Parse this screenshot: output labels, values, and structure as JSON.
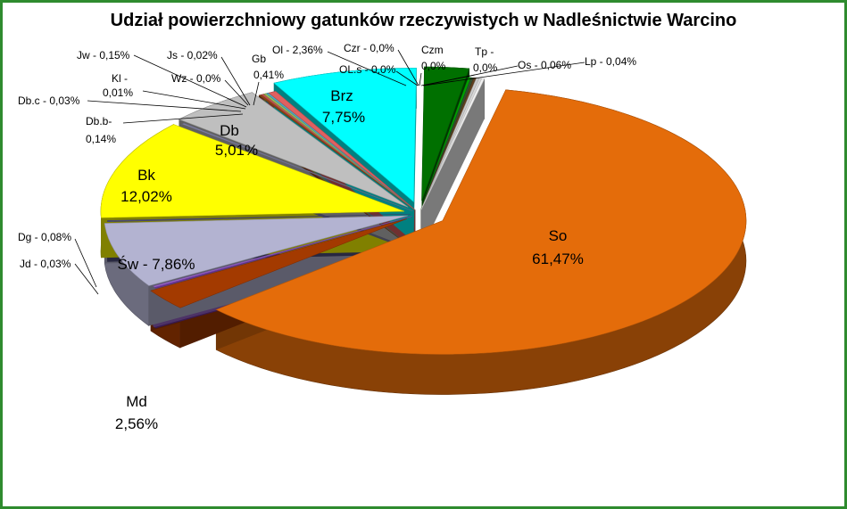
{
  "chart_data": {
    "type": "pie",
    "title": "Udział powierzchniowy gatunków rzeczywistych w Nadleśnictwie Warcino",
    "slices": [
      {
        "name": "So",
        "value": 61.47,
        "label": "So",
        "value_label": "61,47%",
        "color": "#e46c0a"
      },
      {
        "name": "Md",
        "value": 2.56,
        "label": "Md",
        "value_label": "2,56%",
        "color": "#a33a00"
      },
      {
        "name": "Jd",
        "value": 0.03,
        "label": "Jd - 0,03%",
        "color": "#7030a0"
      },
      {
        "name": "Dg",
        "value": 0.08,
        "label": "Dg - 0,08%",
        "color": "#9966cc"
      },
      {
        "name": "Św",
        "value": 7.86,
        "label": "Św - 7,86%",
        "color": "#b3b3d1"
      },
      {
        "name": "Db.c",
        "value": 0.03,
        "label": "Db.c - 0,03%",
        "color": "#4f4f7f"
      },
      {
        "name": "Bk",
        "value": 12.02,
        "label": "Bk",
        "value_label": "12,02%",
        "color": "#ffff00"
      },
      {
        "name": "Db.b",
        "value": 0.14,
        "label": "Db.b-",
        "value_label": "0,14%",
        "color": "#8080a0"
      },
      {
        "name": "Db",
        "value": 5.01,
        "label": "Db",
        "value_label": "5,01%",
        "color": "#bfbfbf"
      },
      {
        "name": "Kl",
        "value": 0.01,
        "label": "Kl -",
        "value_label": "0,01%",
        "color": "#8b4513"
      },
      {
        "name": "Jw",
        "value": 0.15,
        "label": "Jw - 0,15%",
        "color": "#c0504d"
      },
      {
        "name": "Wz",
        "value": 0.0,
        "label": "Wz - 0,0%",
        "color": "#9bbb59"
      },
      {
        "name": "Js",
        "value": 0.02,
        "label": "Js - 0,02%",
        "color": "#4bacc6"
      },
      {
        "name": "Gb",
        "value": 0.41,
        "label": "Gb",
        "value_label": "0,41%",
        "color": "#e06060"
      },
      {
        "name": "Brz",
        "value": 7.75,
        "label": "Brz",
        "value_label": "7,75%",
        "color": "#00ffff"
      },
      {
        "name": "Ol",
        "value": 2.36,
        "label": "Ol - 2,36%",
        "color": "#007000"
      },
      {
        "name": "OL.s",
        "value": 0.0,
        "label": "OL.s - 0,0%",
        "color": "#00a000"
      },
      {
        "name": "Czr",
        "value": 0.0,
        "label": "Czr - 0,0%",
        "color": "#305030"
      },
      {
        "name": "Czm",
        "value": 0.0,
        "label": "Czm",
        "value_label": "0,0%",
        "color": "#604020"
      },
      {
        "name": "Tp",
        "value": 0.0,
        "label": "Tp -",
        "value_label": "0,0%",
        "color": "#cccccc"
      },
      {
        "name": "Os",
        "value": 0.06,
        "label": "Os - 0,06%",
        "color": "#d9d9d9"
      },
      {
        "name": "Lp",
        "value": 0.04,
        "label": "Lp - 0,04%",
        "color": "#f2f2f2"
      }
    ]
  }
}
